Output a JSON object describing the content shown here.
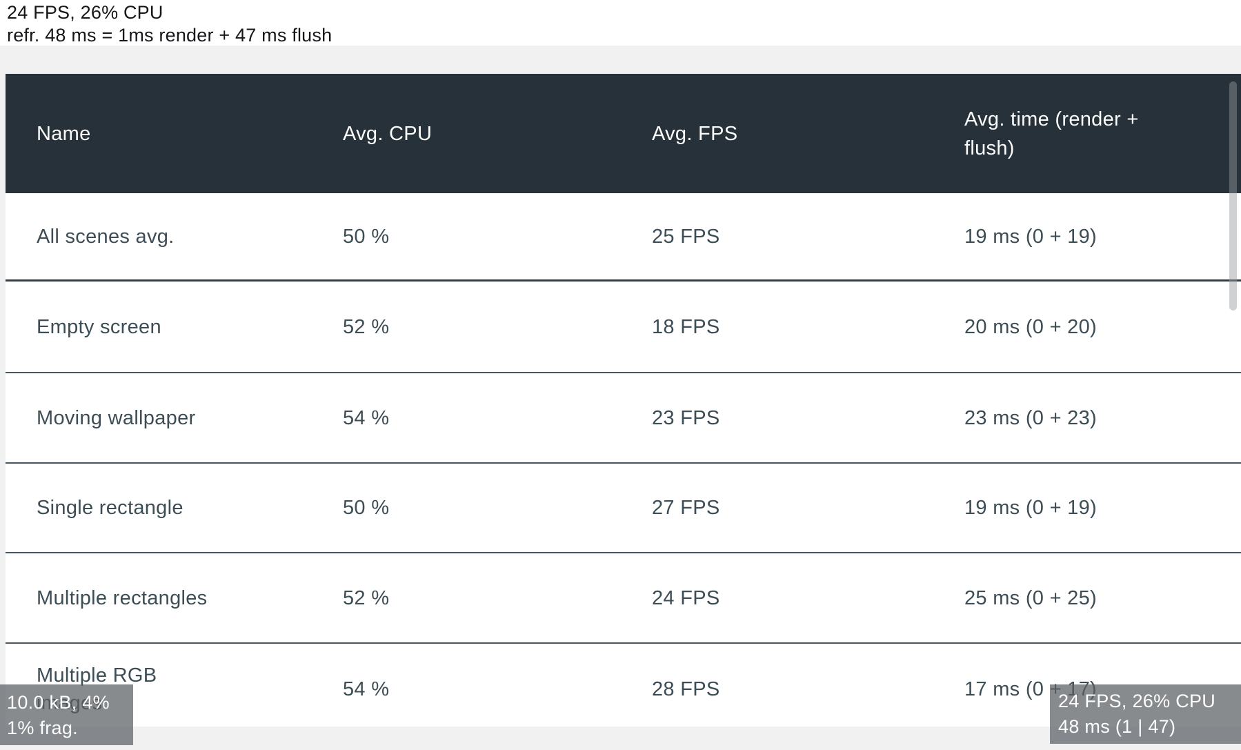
{
  "top_status": {
    "line1": "24 FPS, 26% CPU",
    "line2": "refr. 48 ms = 1ms render + 47 ms flush"
  },
  "table": {
    "columns": [
      "Name",
      "Avg. CPU",
      "Avg. FPS",
      "Avg. time (render +\nflush)"
    ],
    "rows": [
      {
        "name": "All scenes avg.",
        "cpu": "50 %",
        "fps": "25 FPS",
        "time": "19 ms (0 + 19)"
      },
      {
        "name": "Empty screen",
        "cpu": "52 %",
        "fps": "18 FPS",
        "time": "20 ms (0 + 20)"
      },
      {
        "name": "Moving wallpaper",
        "cpu": "54 %",
        "fps": "23 FPS",
        "time": "23 ms (0 + 23)"
      },
      {
        "name": "Single rectangle",
        "cpu": "50 %",
        "fps": "27 FPS",
        "time": "19 ms (0 + 19)"
      },
      {
        "name": "Multiple rectangles",
        "cpu": "52 %",
        "fps": "24 FPS",
        "time": "25 ms (0 + 25)"
      },
      {
        "name": "Multiple RGB\nimages",
        "cpu": "54 %",
        "fps": "28 FPS",
        "time": "17 ms (0 + 17)"
      }
    ]
  },
  "overlay_bottom_left": {
    "line1": "10.0 kB, 4%",
    "line2": "1% frag."
  },
  "overlay_bottom_right": {
    "line1": "24 FPS, 26% CPU",
    "line2": "48 ms (1 | 47)"
  },
  "colors": {
    "header_bg": "#263139",
    "cell_text": "#3d4d56",
    "page_bg": "#f1f1f2",
    "overlay_bg": "#85888b",
    "strong_divider": "#2f3e48",
    "row_divider": "#48575f"
  }
}
